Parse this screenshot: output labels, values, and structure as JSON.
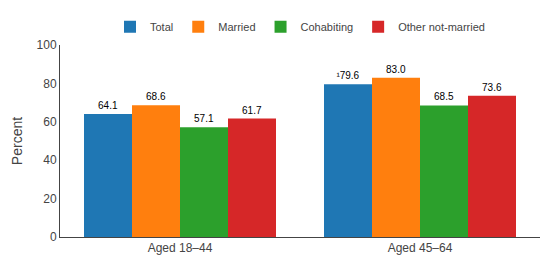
{
  "chart_data": {
    "type": "bar",
    "ylabel": "Percent",
    "categories": [
      "Aged 18–44",
      "Aged 45–64"
    ],
    "series": [
      {
        "name": "Total",
        "values": [
          64.1,
          79.6
        ],
        "value_labels": [
          "64.1",
          "¹79.6"
        ]
      },
      {
        "name": "Married",
        "values": [
          68.6,
          83.0
        ],
        "value_labels": [
          "68.6",
          "83.0"
        ]
      },
      {
        "name": "Cohabiting",
        "values": [
          57.1,
          68.5
        ],
        "value_labels": [
          "57.1",
          "68.5"
        ]
      },
      {
        "name": "Other not-married",
        "values": [
          61.7,
          73.6
        ],
        "value_labels": [
          "61.7",
          "73.6"
        ]
      }
    ],
    "ylim": [
      0,
      100
    ],
    "yticks": [
      0,
      20,
      40,
      60,
      80,
      100
    ],
    "grid": false,
    "legend": "top",
    "data_labels": true
  }
}
